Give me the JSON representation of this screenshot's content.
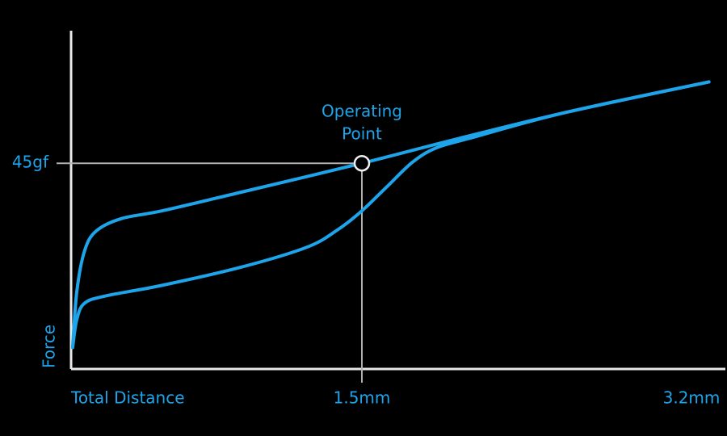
{
  "chart_data": {
    "type": "line",
    "x_label": "Total Distance",
    "y_label": "Force",
    "xlim": [
      0,
      3.35
    ],
    "ylim": [
      0,
      74
    ],
    "xticks": [
      {
        "value": 1.5,
        "label": "1.5mm"
      },
      {
        "value": 3.2,
        "label": "3.2mm"
      }
    ],
    "yticks": [
      {
        "value": 45,
        "label": "45gf"
      }
    ],
    "series": [
      {
        "color": "#1ea4ea",
        "x": [
          0.008,
          0.03,
          0.07,
          0.13,
          0.26,
          0.47,
          0.88,
          1.5,
          1.97,
          2.55,
          3.29
        ],
        "values": [
          4.7,
          17.1,
          25.9,
          30.2,
          32.9,
          34.6,
          38.7,
          45,
          50.1,
          56.1,
          62.8
        ]
      },
      {
        "color": "#1ea4ea",
        "x": [
          0.008,
          0.03,
          0.07,
          0.18,
          0.47,
          0.88,
          1.22,
          1.38,
          1.5,
          1.63,
          1.76,
          1.88,
          2.05,
          2.55,
          3.29
        ],
        "values": [
          4.7,
          10.9,
          14.4,
          16.0,
          18.3,
          22.3,
          26.7,
          30.6,
          34.6,
          39.9,
          45.2,
          48.3,
          50.4,
          56.1,
          62.8
        ]
      }
    ],
    "annotation": {
      "text_lines": [
        "Operating",
        "Point"
      ],
      "x": 1.5,
      "y": 45
    }
  }
}
